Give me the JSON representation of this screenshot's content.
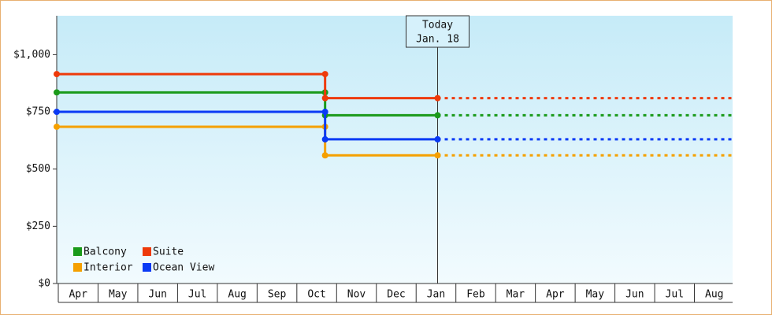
{
  "chart_data": {
    "type": "line",
    "categories": [
      "Apr",
      "May",
      "Jun",
      "Jul",
      "Aug",
      "Sep",
      "Oct",
      "Nov",
      "Dec",
      "Jan",
      "Feb",
      "Mar",
      "Apr",
      "May",
      "Jun",
      "Jul",
      "Aug"
    ],
    "xlim": [
      0,
      17
    ],
    "ylim": [
      0,
      1170
    ],
    "yticks": [
      {
        "value": 0,
        "label": "$0"
      },
      {
        "value": 250,
        "label": "$250"
      },
      {
        "value": 500,
        "label": "$500"
      },
      {
        "value": 750,
        "label": "$750"
      },
      {
        "value": 1000,
        "label": "$1,000"
      }
    ],
    "series": [
      {
        "name": "Balcony",
        "color": "#1a9a1a",
        "x": [
          0,
          6.75,
          6.75,
          9.58
        ],
        "values": [
          835,
          835,
          735,
          735
        ]
      },
      {
        "name": "Suite",
        "color": "#ee3a0a",
        "x": [
          0,
          6.75,
          6.75,
          9.58
        ],
        "values": [
          915,
          915,
          810,
          810
        ]
      },
      {
        "name": "Interior",
        "color": "#f5a000",
        "x": [
          0,
          6.75,
          6.75,
          9.58
        ],
        "values": [
          685,
          685,
          560,
          560
        ]
      },
      {
        "name": "Ocean View",
        "color": "#0a3af5",
        "x": [
          0,
          6.75,
          6.75,
          9.58
        ],
        "values": [
          750,
          750,
          630,
          630
        ]
      }
    ],
    "annotation": {
      "lines": [
        "Today",
        "Jan. 18"
      ],
      "x": 9.58
    },
    "legend": "bottom-left"
  }
}
